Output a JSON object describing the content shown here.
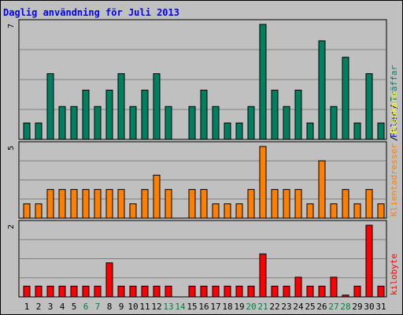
{
  "title": "Daglig användning för Juli 2013",
  "colors": {
    "background": "#c0c0c0",
    "grid": "#7f7f7f",
    "weekday_label": "#000000",
    "weekend_label": "#008040"
  },
  "legend": {
    "traffar": "Träffar",
    "filer": "Filer",
    "besokare": "Besökare",
    "klientadresser": "Klientadresser",
    "kilobyte": "kilobyte",
    "sep": "/"
  },
  "chart_data": [
    {
      "type": "bar",
      "panel": "top",
      "ymax_label": "7",
      "ylim": [
        0,
        7
      ],
      "categories": [
        "1",
        "2",
        "3",
        "4",
        "5",
        "6",
        "7",
        "8",
        "9",
        "10",
        "11",
        "12",
        "13",
        "14",
        "15",
        "16",
        "17",
        "18",
        "19",
        "20",
        "21",
        "22",
        "23",
        "24",
        "25",
        "26",
        "27",
        "28",
        "29",
        "30",
        "31"
      ],
      "weekend": [
        6,
        7,
        13,
        14,
        20,
        21,
        27,
        28
      ],
      "series": [
        {
          "name": "Träffar",
          "color": "#008060",
          "values": [
            1,
            1,
            4,
            2,
            2,
            3,
            2,
            3,
            4,
            2,
            3,
            4,
            2,
            0,
            2,
            3,
            2,
            1,
            1,
            2,
            7,
            3,
            2,
            3,
            1,
            6,
            2,
            5,
            1,
            4,
            1
          ]
        }
      ]
    },
    {
      "type": "bar",
      "panel": "middle",
      "ymax_label": "5",
      "ylim": [
        0,
        5
      ],
      "categories": [
        "1",
        "2",
        "3",
        "4",
        "5",
        "6",
        "7",
        "8",
        "9",
        "10",
        "11",
        "12",
        "13",
        "14",
        "15",
        "16",
        "17",
        "18",
        "19",
        "20",
        "21",
        "22",
        "23",
        "24",
        "25",
        "26",
        "27",
        "28",
        "29",
        "30",
        "31"
      ],
      "series": [
        {
          "name": "Klientadresser",
          "color": "#ff8000",
          "values": [
            1,
            1,
            2,
            2,
            2,
            2,
            2,
            2,
            2,
            1,
            2,
            3,
            2,
            0,
            2,
            2,
            1,
            1,
            1,
            2,
            5,
            2,
            2,
            2,
            1,
            4,
            1,
            2,
            1,
            2,
            1
          ]
        }
      ]
    },
    {
      "type": "bar",
      "panel": "bottom",
      "ymax_label": "2",
      "ylim": [
        0,
        2
      ],
      "categories": [
        "1",
        "2",
        "3",
        "4",
        "5",
        "6",
        "7",
        "8",
        "9",
        "10",
        "11",
        "12",
        "13",
        "14",
        "15",
        "16",
        "17",
        "18",
        "19",
        "20",
        "21",
        "22",
        "23",
        "24",
        "25",
        "26",
        "27",
        "28",
        "29",
        "30",
        "31"
      ],
      "series": [
        {
          "name": "kilobyte",
          "color": "#ff0000",
          "values": [
            0.3,
            0.3,
            0.3,
            0.3,
            0.3,
            0.3,
            0.3,
            0.95,
            0.3,
            0.3,
            0.3,
            0.3,
            0.3,
            0,
            0.3,
            0.3,
            0.3,
            0.3,
            0.3,
            0.3,
            1.2,
            0.3,
            0.3,
            0.55,
            0.3,
            0.3,
            0.55,
            0.05,
            0.3,
            2,
            0.3
          ]
        }
      ]
    }
  ]
}
